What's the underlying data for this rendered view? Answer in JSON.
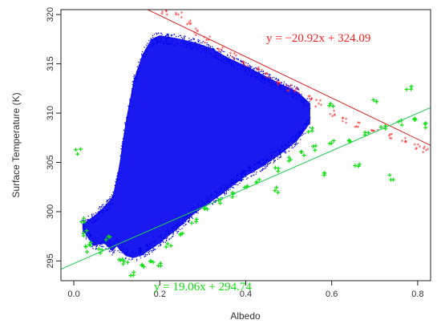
{
  "chart_data": {
    "type": "scatter",
    "xlabel": "Albedo",
    "ylabel": "Surface Temperature (K)",
    "xlim": [
      -0.03,
      0.83
    ],
    "ylim": [
      293.0,
      320.5
    ],
    "x_ticks": [
      0.0,
      0.2,
      0.4,
      0.6,
      0.8
    ],
    "x_tick_labels": [
      "0.0",
      "0.2",
      "0.4",
      "0.6",
      "0.8"
    ],
    "y_ticks": [
      295,
      300,
      305,
      310,
      315,
      320
    ],
    "y_tick_labels": [
      "295",
      "300",
      "305",
      "310",
      "315",
      "320"
    ],
    "grid": false,
    "colors": {
      "main": "#0000ee",
      "upper": "#ff2020",
      "lower": "#10e010",
      "upper_line": "#dd2222",
      "lower_line": "#22cc55"
    },
    "series": [
      {
        "role": "main",
        "marker": "dot",
        "envelope_upper": [
          [
            0.02,
            298.8
          ],
          [
            0.045,
            299.5
          ],
          [
            0.07,
            300.5
          ],
          [
            0.09,
            301.5
          ],
          [
            0.105,
            304.5
          ],
          [
            0.12,
            309.0
          ],
          [
            0.14,
            313.5
          ],
          [
            0.16,
            316.0
          ],
          [
            0.18,
            317.5
          ],
          [
            0.2,
            317.9
          ],
          [
            0.24,
            317.6
          ],
          [
            0.28,
            317.2
          ],
          [
            0.32,
            316.6
          ],
          [
            0.36,
            315.6
          ],
          [
            0.4,
            314.8
          ],
          [
            0.44,
            313.9
          ],
          [
            0.48,
            313.0
          ],
          [
            0.52,
            312.2
          ],
          [
            0.55,
            311.0
          ]
        ],
        "envelope_lower": [
          [
            0.02,
            298.2
          ],
          [
            0.045,
            296.5
          ],
          [
            0.07,
            296.8
          ],
          [
            0.09,
            296.0
          ],
          [
            0.1,
            296.5
          ],
          [
            0.12,
            295.5
          ],
          [
            0.14,
            295.3
          ],
          [
            0.16,
            295.6
          ],
          [
            0.2,
            296.8
          ],
          [
            0.24,
            298.2
          ],
          [
            0.28,
            299.8
          ],
          [
            0.32,
            301.0
          ],
          [
            0.36,
            302.3
          ],
          [
            0.4,
            303.6
          ],
          [
            0.44,
            304.6
          ],
          [
            0.48,
            305.8
          ],
          [
            0.52,
            307.2
          ],
          [
            0.55,
            309.0
          ]
        ]
      },
      {
        "role": "upper",
        "marker": "star",
        "points": [
          [
            0.21,
            320.3
          ],
          [
            0.245,
            320.0
          ],
          [
            0.265,
            319.3
          ],
          [
            0.285,
            318.2
          ],
          [
            0.31,
            317.4
          ],
          [
            0.34,
            316.6
          ],
          [
            0.37,
            315.8
          ],
          [
            0.4,
            315.1
          ],
          [
            0.43,
            314.5
          ],
          [
            0.45,
            313.9
          ],
          [
            0.48,
            313.2
          ],
          [
            0.5,
            312.6
          ],
          [
            0.52,
            312.2
          ],
          [
            0.55,
            311.5
          ],
          [
            0.57,
            311.0
          ],
          [
            0.6,
            310.0
          ],
          [
            0.63,
            309.2
          ],
          [
            0.66,
            308.9
          ],
          [
            0.7,
            308.2
          ],
          [
            0.74,
            307.6
          ],
          [
            0.77,
            307.2
          ],
          [
            0.8,
            306.5
          ],
          [
            0.82,
            306.2
          ]
        ]
      },
      {
        "role": "lower",
        "marker": "plus",
        "points": [
          [
            0.02,
            299.2
          ],
          [
            0.025,
            297.8
          ],
          [
            0.03,
            296.2
          ],
          [
            0.04,
            296.8
          ],
          [
            0.06,
            296.0
          ],
          [
            0.08,
            297.4
          ],
          [
            0.11,
            295.2
          ],
          [
            0.12,
            294.8
          ],
          [
            0.135,
            293.8
          ],
          [
            0.16,
            294.6
          ],
          [
            0.18,
            294.8
          ],
          [
            0.2,
            294.5
          ],
          [
            0.22,
            296.5
          ],
          [
            0.25,
            297.6
          ],
          [
            0.28,
            299.1
          ],
          [
            0.31,
            300.3
          ],
          [
            0.34,
            301.0
          ],
          [
            0.37,
            301.7
          ],
          [
            0.4,
            302.4
          ],
          [
            0.43,
            303.2
          ],
          [
            0.47,
            304.4
          ],
          [
            0.5,
            305.3
          ],
          [
            0.53,
            305.8
          ],
          [
            0.56,
            306.5
          ],
          [
            0.6,
            306.9
          ],
          [
            0.64,
            307.4
          ],
          [
            0.68,
            308.0
          ],
          [
            0.72,
            308.6
          ],
          [
            0.76,
            309.0
          ],
          [
            0.79,
            309.4
          ],
          [
            0.82,
            308.8
          ],
          [
            0.58,
            303.8
          ],
          [
            0.66,
            304.8
          ],
          [
            0.74,
            303.5
          ],
          [
            0.47,
            302.2
          ],
          [
            0.55,
            308.4
          ],
          [
            0.7,
            311.2
          ],
          [
            0.78,
            312.7
          ],
          [
            0.6,
            310.8
          ],
          [
            0.01,
            306.1
          ]
        ]
      }
    ],
    "fits": [
      {
        "role": "upper",
        "slope": -20.92,
        "intercept": 324.09,
        "label": "y = −20.92x + 324.09"
      },
      {
        "role": "lower",
        "slope": 19.06,
        "intercept": 294.74,
        "label": "y = 19.06x + 294.74"
      }
    ]
  }
}
